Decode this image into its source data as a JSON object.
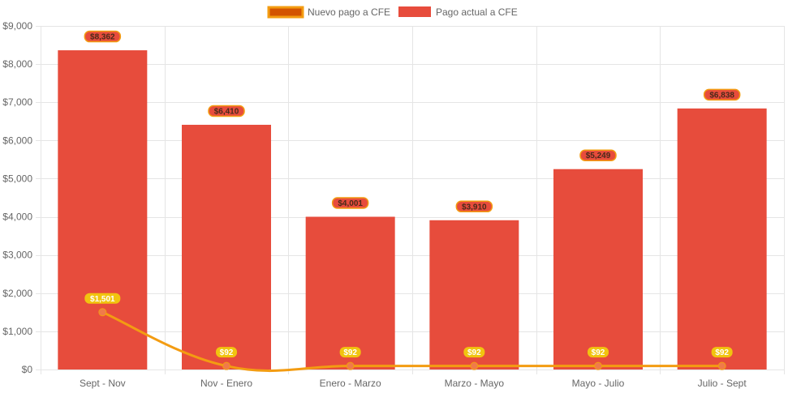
{
  "chart_data": {
    "type": "bar",
    "categories": [
      "Sept - Nov",
      "Nov - Enero",
      "Enero - Marzo",
      "Marzo - Mayo",
      "Mayo - Julio",
      "Julio - Sept"
    ],
    "series": [
      {
        "name": "Nuevo pago a CFE",
        "kind": "line",
        "values": [
          1501,
          92,
          92,
          92,
          92,
          92
        ],
        "labels": [
          "$1,501",
          "$92",
          "$92",
          "$92",
          "$92",
          "$92"
        ],
        "color": "#f39c12"
      },
      {
        "name": "Pago actual a CFE",
        "kind": "bar",
        "values": [
          8362,
          6410,
          4001,
          3910,
          5249,
          6838
        ],
        "labels": [
          "$8,362",
          "$6,410",
          "$4,001",
          "$3,910",
          "$5,249",
          "$6,838"
        ],
        "color": "#e74c3c"
      }
    ],
    "y_ticks": [
      "$0",
      "$1,000",
      "$2,000",
      "$3,000",
      "$4,000",
      "$5,000",
      "$6,000",
      "$7,000",
      "$8,000",
      "$9,000"
    ],
    "ylim": [
      0,
      9000
    ],
    "grid": true,
    "legend_position": "top-center",
    "title": "",
    "xlabel": "",
    "ylabel": ""
  },
  "colors": {
    "bar_fill": "#e74c3c",
    "line_stroke": "#f39c12",
    "line_point": "#f07a4a",
    "legend_line_fill": "#d35400",
    "bar_label_bg": "#e74c3c",
    "bar_label_border": "#f39c12",
    "line_label_bg": "#f1c40f",
    "grid": "#e5e5e5"
  }
}
